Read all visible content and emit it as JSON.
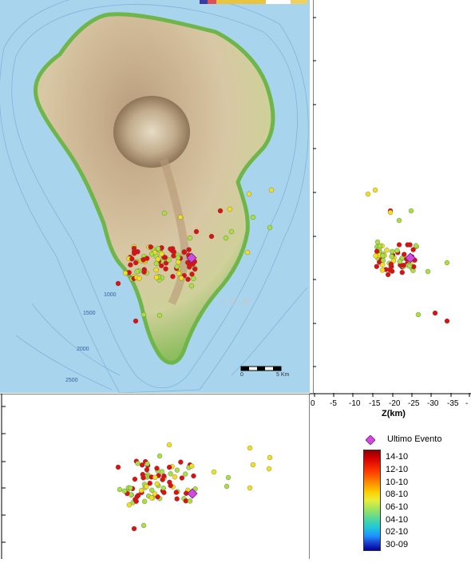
{
  "map": {
    "watermark": "IGN",
    "contour_labels": [
      "1000",
      "1500",
      "2000",
      "2500"
    ],
    "scale_labels": [
      "0",
      "5 Km"
    ]
  },
  "depth_axis": {
    "label": "Z(km)",
    "ticks": [
      "0",
      "-5",
      "-10",
      "-15",
      "-20",
      "-25",
      "-30",
      "-35",
      "-"
    ]
  },
  "legend": {
    "title": "Ultimo Evento",
    "dates": [
      "14-10",
      "12-10",
      "10-10",
      "08-10",
      "06-10",
      "04-10",
      "02-10",
      "30-09"
    ],
    "gradient_colors": [
      "#8b0000",
      "#d40000",
      "#ff3300",
      "#ff8800",
      "#ffd000",
      "#e6ee3c",
      "#a8e45a",
      "#56d89a",
      "#20c8d8",
      "#1e90ff",
      "#1a3ccc",
      "#0000a0"
    ]
  },
  "colors": {
    "sea": "#a9d4ee",
    "latest_event": "#d24be0",
    "recent": "#dd1111",
    "mid": "#f0e020",
    "older": "#a8e040"
  }
}
